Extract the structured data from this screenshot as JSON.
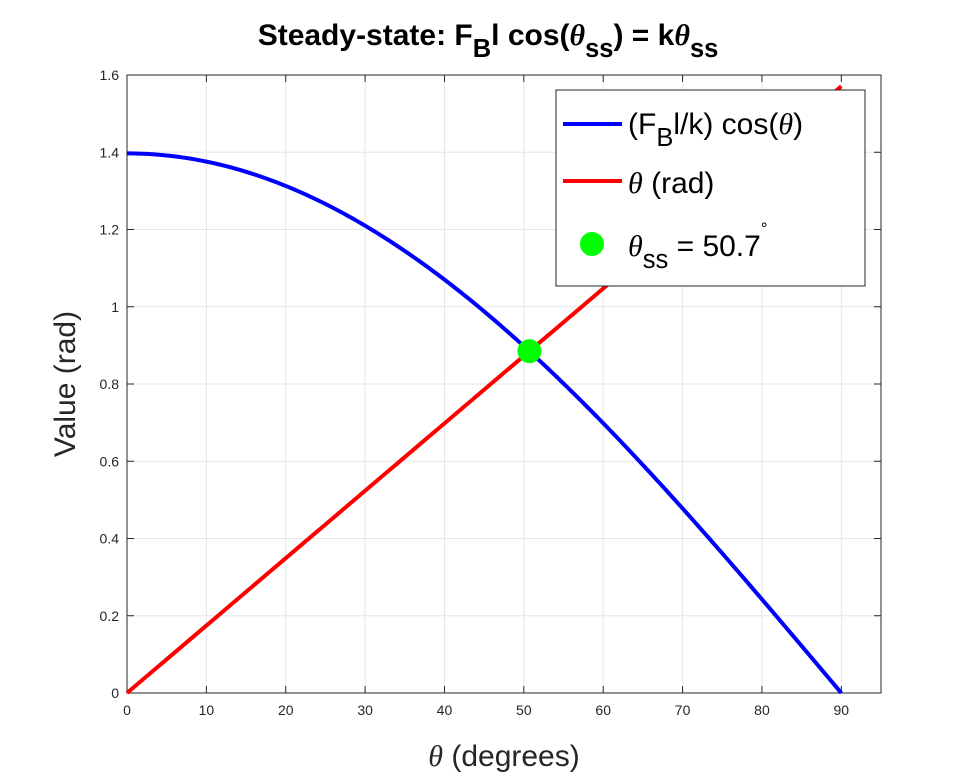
{
  "chart_data": {
    "type": "line",
    "title": [
      {
        "text": "Steady-state: F",
        "sub": false
      },
      {
        "text": "B",
        "sub": true
      },
      {
        "text": "l cos(",
        "sub": false
      },
      {
        "text": "θ",
        "sub": false,
        "italic": true
      },
      {
        "text": "ss",
        "sub": true
      },
      {
        "text": ") = k",
        "sub": false
      },
      {
        "text": "θ",
        "sub": false,
        "italic": true
      },
      {
        "text": "ss",
        "sub": true
      }
    ],
    "xlabel": {
      "symbol": "θ",
      "text": " (degrees)"
    },
    "ylabel": "Value (rad)",
    "xlim": [
      0,
      95
    ],
    "ylim": [
      0,
      1.6
    ],
    "xticks": [
      "0",
      "10",
      "20",
      "30",
      "40",
      "50",
      "60",
      "70",
      "80",
      "90"
    ],
    "yticks": [
      "0",
      "0.2",
      "0.4",
      "0.6",
      "0.8",
      "1",
      "1.2",
      "1.4",
      "1.6"
    ],
    "grid": true,
    "legend_placement": "top-right",
    "series": [
      {
        "name": "(F_Bl/k) cos(θ)",
        "legend": [
          {
            "text": "(F",
            "sub": false
          },
          {
            "text": "B",
            "sub": true
          },
          {
            "text": "l/k) cos(",
            "sub": false
          },
          {
            "text": "θ",
            "sub": false,
            "italic": true
          },
          {
            "text": ")",
            "sub": false
          }
        ],
        "color": "#0000ff",
        "function": "amplitude*cos(theta)",
        "amplitude": 1.397,
        "x_range_deg": [
          0,
          90
        ]
      },
      {
        "name": "θ (rad)",
        "legend": [
          {
            "text": "θ",
            "sub": false,
            "italic": true
          },
          {
            "text": " (rad)",
            "sub": false
          }
        ],
        "color": "#ff0000",
        "function": "theta_rad",
        "x_range_deg": [
          0,
          90
        ]
      },
      {
        "name": "θss = 50.7°",
        "legend": [
          {
            "text": "θ",
            "sub": false,
            "italic": true
          },
          {
            "text": "ss",
            "sub": true
          },
          {
            "text": " = 50.7",
            "sub": false
          },
          {
            "text": "°",
            "sup": true
          }
        ],
        "color": "#00ff00",
        "type": "scatter",
        "x": [
          50.7
        ],
        "y": [
          0.885
        ]
      }
    ]
  }
}
